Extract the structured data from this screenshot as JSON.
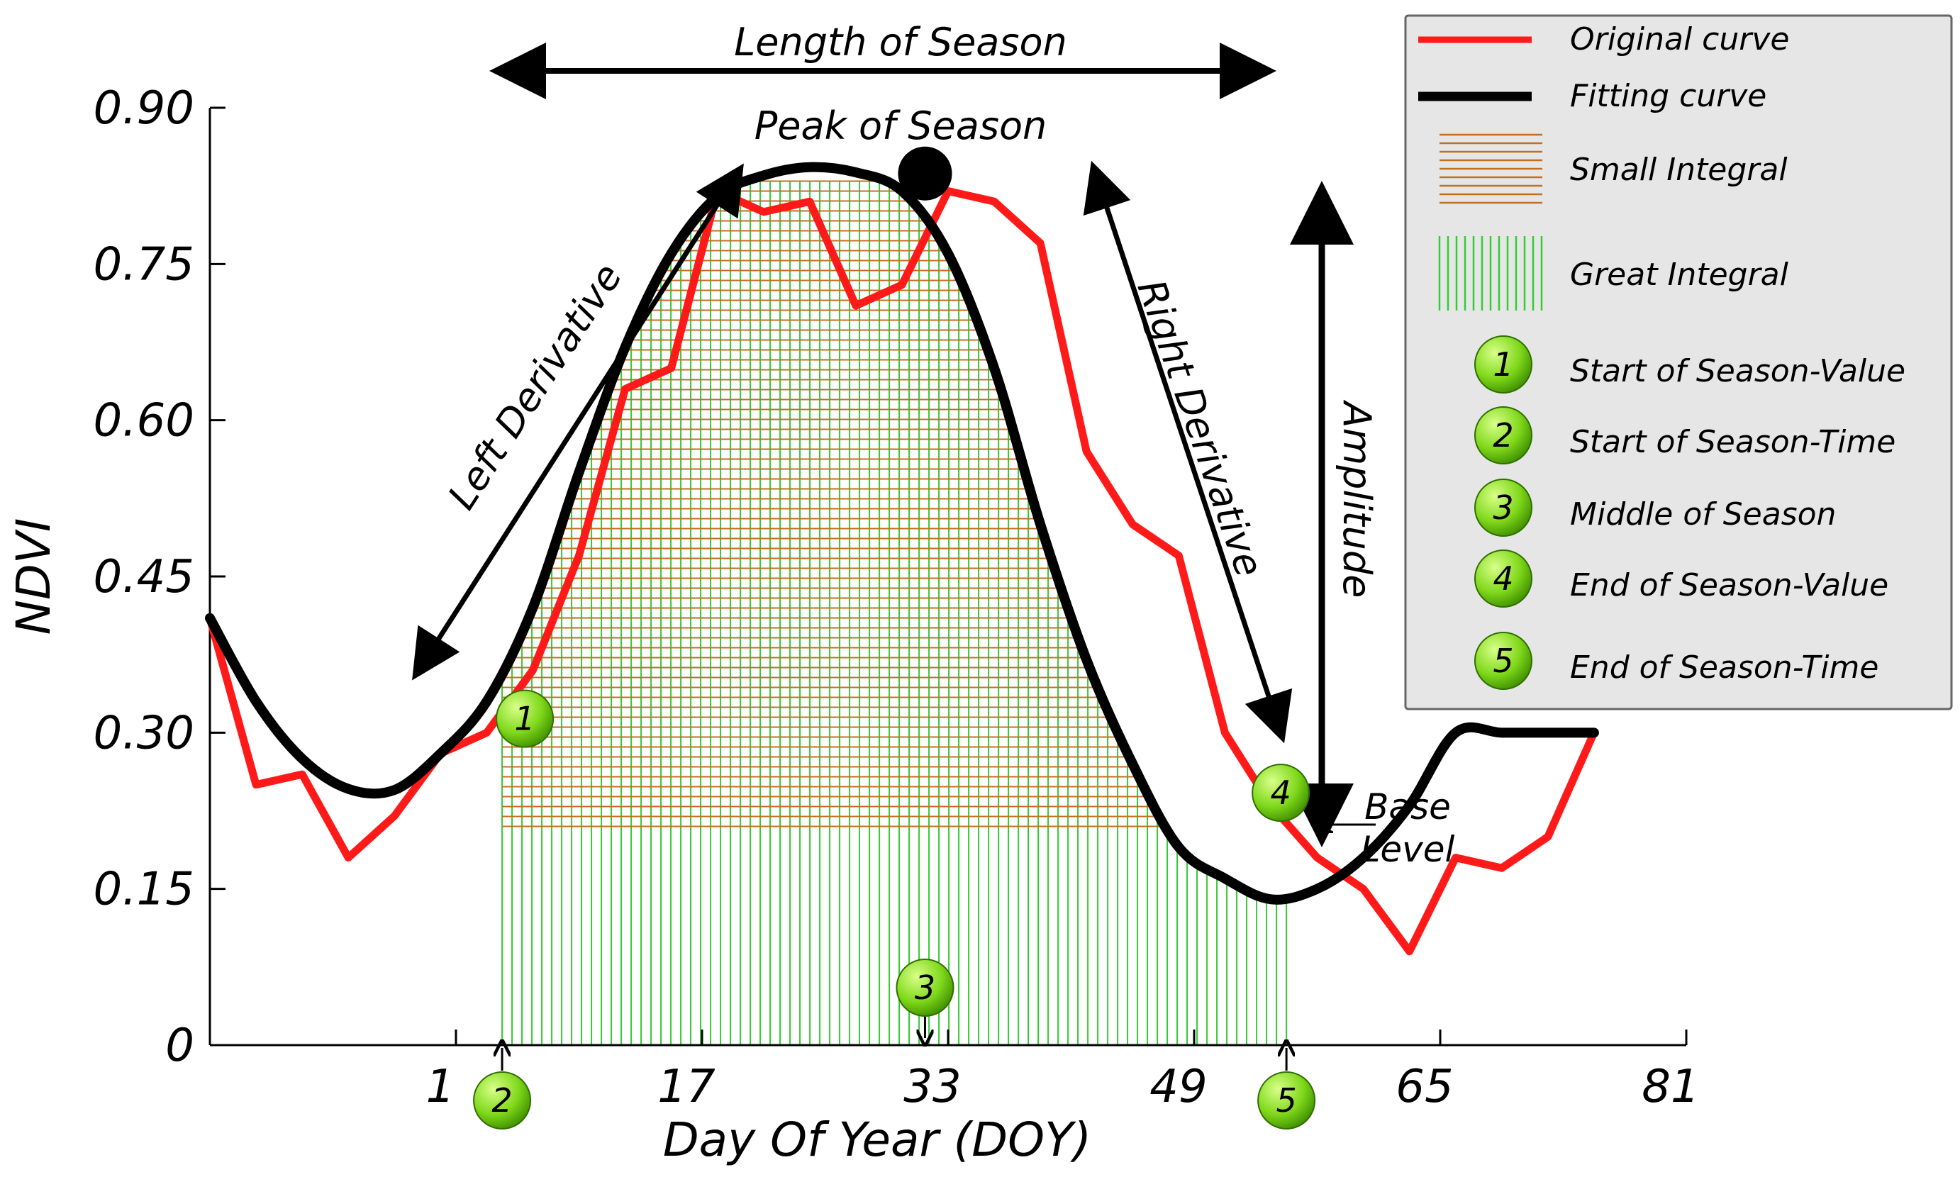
{
  "chart_data": {
    "type": "line",
    "title": "",
    "xlabel": "Day Of Year (DOY)",
    "ylabel": "NDVI",
    "xlim": [
      -15,
      81
    ],
    "ylim": [
      0,
      0.9
    ],
    "grid": false,
    "legend_position": "top-right",
    "x_ticks": [
      1,
      17,
      33,
      49,
      65,
      81
    ],
    "x_tick_labels": [
      "1",
      "17",
      "33",
      "49",
      "65",
      "81"
    ],
    "y_ticks": [
      0,
      0.15,
      0.3,
      0.45,
      0.6,
      0.75,
      0.9
    ],
    "y_tick_labels": [
      "0",
      "0.15",
      "0.30",
      "0.45",
      "0.60",
      "0.75",
      "0.90"
    ],
    "series": [
      {
        "name": "Original curve",
        "color": "#ff1a1a",
        "x": [
          -15,
          -12,
          -9,
          -6,
          -3,
          0,
          3,
          6,
          9,
          12,
          15,
          18,
          21,
          24,
          27,
          30,
          33,
          36,
          39,
          42,
          45,
          48,
          51,
          54,
          57,
          60,
          63,
          66,
          69,
          72,
          75
        ],
        "y": [
          0.41,
          0.25,
          0.26,
          0.18,
          0.22,
          0.28,
          0.3,
          0.36,
          0.47,
          0.63,
          0.65,
          0.82,
          0.8,
          0.81,
          0.71,
          0.73,
          0.82,
          0.81,
          0.77,
          0.57,
          0.5,
          0.47,
          0.3,
          0.23,
          0.18,
          0.15,
          0.09,
          0.18,
          0.17,
          0.2,
          0.3
        ]
      },
      {
        "name": "Fitting curve",
        "color": "#000000",
        "x": [
          -15,
          -12,
          -9,
          -6,
          -3,
          0,
          3,
          6,
          9,
          12,
          15,
          18,
          21,
          24,
          27,
          30,
          33,
          36,
          39,
          42,
          45,
          48,
          51,
          54,
          57,
          60,
          63,
          66,
          69,
          72,
          75
        ],
        "y": [
          0.41,
          0.33,
          0.275,
          0.246,
          0.245,
          0.28,
          0.33,
          0.42,
          0.55,
          0.67,
          0.76,
          0.815,
          0.835,
          0.843,
          0.838,
          0.82,
          0.76,
          0.65,
          0.5,
          0.37,
          0.27,
          0.19,
          0.16,
          0.14,
          0.15,
          0.18,
          0.23,
          0.3,
          0.3,
          0.3,
          0.3
        ]
      }
    ],
    "season_metrics": {
      "start_time": 4.0,
      "start_value": 0.31,
      "end_time": 55.0,
      "end_value": 0.23,
      "middle_time": 31.5,
      "peak_time": 31.5,
      "peak_value": 0.845,
      "base_level": 0.21
    },
    "annotations": {
      "length_of_season": "Length of Season",
      "peak_of_season": "Peak of Season",
      "left_derivative": "Left Derivative",
      "right_derivative": "Right Derivative",
      "amplitude": "Amplitude",
      "base_level_line1": "Base",
      "base_level_line2": "Level"
    },
    "legend": [
      {
        "label": "Original curve",
        "kind": "red-line"
      },
      {
        "label": "Fitting curve",
        "kind": "black-line"
      },
      {
        "label": "Small Integral",
        "kind": "orange-hatch"
      },
      {
        "label": "Great Integral",
        "kind": "green-hatch"
      },
      {
        "label": "Start of Season-Value",
        "kind": "badge",
        "number": "1"
      },
      {
        "label": "Start of Season-Time",
        "kind": "badge",
        "number": "2"
      },
      {
        "label": "Middle of Season",
        "kind": "badge",
        "number": "3"
      },
      {
        "label": "End of Season-Value",
        "kind": "badge",
        "number": "4"
      },
      {
        "label": "End of Season-Time",
        "kind": "badge",
        "number": "5"
      }
    ],
    "badges": [
      "1",
      "2",
      "3",
      "4",
      "5"
    ]
  },
  "colors": {
    "original": "#ff1a1a",
    "fitting": "#000000",
    "small_integral": "#c07020",
    "great_integral": "#33cc33",
    "badge_fill": "#7fd81a",
    "legend_bg": "#e6e6e6"
  }
}
